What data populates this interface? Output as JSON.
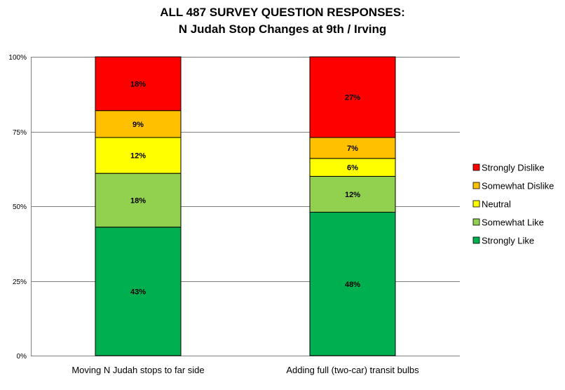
{
  "chart_data": {
    "type": "bar",
    "stacked": true,
    "normalized": true,
    "title": "ALL 487 SURVEY QUESTION RESPONSES:",
    "subtitle": "N Judah Stop Changes at 9th / Irving",
    "categories": [
      "Moving N Judah stops to far side",
      "Adding full (two-car) transit bulbs"
    ],
    "series": [
      {
        "name": "Strongly Like",
        "color": "#00b050",
        "values": [
          43,
          48
        ],
        "labels": [
          "43%",
          "48%"
        ]
      },
      {
        "name": "Somewhat Like",
        "color": "#92d050",
        "values": [
          18,
          12
        ],
        "labels": [
          "18%",
          "12%"
        ]
      },
      {
        "name": "Neutral",
        "color": "#ffff00",
        "values": [
          12,
          6
        ],
        "labels": [
          "12%",
          "6%"
        ]
      },
      {
        "name": "Somewhat Dislike",
        "color": "#ffc000",
        "values": [
          9,
          7
        ],
        "labels": [
          "9%",
          "7%"
        ]
      },
      {
        "name": "Strongly Dislike",
        "color": "#ff0000",
        "values": [
          18,
          27
        ],
        "labels": [
          "18%",
          "27%"
        ]
      }
    ],
    "ylim": [
      0,
      100
    ],
    "yticks": [
      0,
      25,
      50,
      75,
      100
    ],
    "ytick_labels": [
      "0%",
      "25%",
      "50%",
      "75%",
      "100%"
    ],
    "grid": true,
    "legend": "right"
  }
}
